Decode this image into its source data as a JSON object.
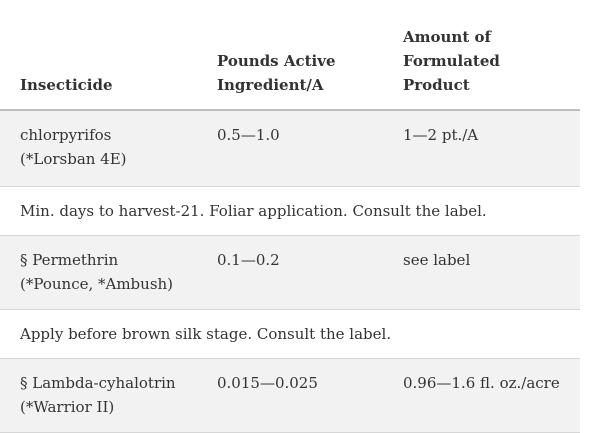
{
  "table": {
    "headers": {
      "insecticide": "Insecticide",
      "pounds_line1": "Pounds Active",
      "pounds_line2": "Ingredient/A",
      "amount_line1": "Amount of",
      "amount_line2": "Formulated Product"
    },
    "rows": [
      {
        "name": "chlorpyrifos",
        "trade": "(*Lorsban 4E)",
        "pounds": "0.5—1.0",
        "amount": "1—2 pt./A",
        "note": "Min. days to harvest-21. Foliar application. Consult the label."
      },
      {
        "name": "§ Permethrin",
        "trade": "(*Pounce, *Ambush)",
        "pounds": "0.1—0.2",
        "amount": "see label",
        "note": "Apply before brown silk stage. Consult the label."
      },
      {
        "name": "§ Lambda-cyhalotrin",
        "trade": "(*Warrior II)",
        "pounds": "0.015—0.025",
        "amount": "0.96—1.6 fl. oz./acre"
      }
    ]
  }
}
